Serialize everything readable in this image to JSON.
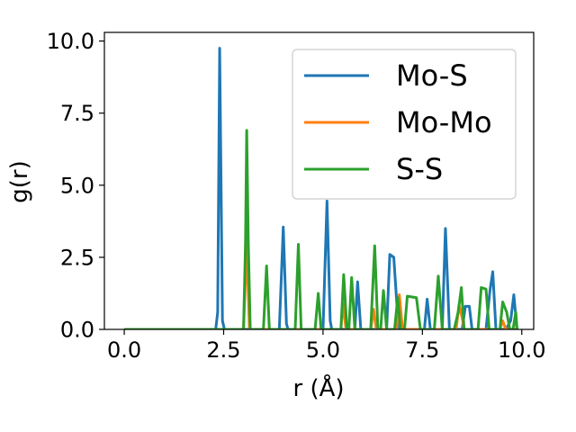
{
  "chart_data": {
    "type": "line",
    "title": "",
    "xlabel": "r (Å)",
    "ylabel": "g(r)",
    "xlim": [
      -0.5,
      10.3
    ],
    "ylim": [
      0,
      10.3
    ],
    "xticks": [
      0.0,
      2.5,
      5.0,
      7.5,
      10.0
    ],
    "yticks": [
      0.0,
      2.5,
      5.0,
      7.5,
      10.0
    ],
    "xtick_labels": [
      "0.0",
      "2.5",
      "5.0",
      "7.5",
      "10.0"
    ],
    "ytick_labels": [
      "0.0",
      "2.5",
      "5.0",
      "7.5",
      "10.0"
    ],
    "grid": false,
    "legend_position": "upper right",
    "series": [
      {
        "name": "Mo-S",
        "color": "#1f77b4",
        "points": [
          [
            0,
            0
          ],
          [
            2.3,
            0
          ],
          [
            2.35,
            0.6
          ],
          [
            2.4,
            9.75
          ],
          [
            2.47,
            0.3
          ],
          [
            2.52,
            0
          ],
          [
            3.9,
            0
          ],
          [
            4.0,
            3.55
          ],
          [
            4.08,
            0.2
          ],
          [
            4.12,
            0
          ],
          [
            5.0,
            0
          ],
          [
            5.1,
            4.45
          ],
          [
            5.18,
            0.3
          ],
          [
            5.22,
            0
          ],
          [
            5.8,
            0
          ],
          [
            5.87,
            1.65
          ],
          [
            5.95,
            0
          ],
          [
            6.6,
            0
          ],
          [
            6.68,
            2.6
          ],
          [
            6.78,
            2.5
          ],
          [
            6.9,
            0
          ],
          [
            7.55,
            0
          ],
          [
            7.62,
            1.05
          ],
          [
            7.7,
            0
          ],
          [
            8.0,
            0
          ],
          [
            8.08,
            3.5
          ],
          [
            8.18,
            0
          ],
          [
            8.5,
            0
          ],
          [
            8.58,
            0.8
          ],
          [
            8.68,
            0.8
          ],
          [
            8.75,
            0
          ],
          [
            9.1,
            0
          ],
          [
            9.2,
            1.35
          ],
          [
            9.27,
            2.0
          ],
          [
            9.35,
            0
          ],
          [
            9.6,
            0
          ],
          [
            9.72,
            0.3
          ],
          [
            9.8,
            1.2
          ],
          [
            9.88,
            0
          ]
        ]
      },
      {
        "name": "Mo-Mo",
        "color": "#ff7f0e",
        "points": [
          [
            0,
            0
          ],
          [
            3.0,
            0
          ],
          [
            3.08,
            2.95
          ],
          [
            3.15,
            0
          ],
          [
            5.45,
            0
          ],
          [
            5.5,
            0.9
          ],
          [
            5.58,
            0
          ],
          [
            6.2,
            0
          ],
          [
            6.27,
            0.7
          ],
          [
            6.34,
            0
          ],
          [
            6.85,
            0
          ],
          [
            6.92,
            1.2
          ],
          [
            7.0,
            0
          ],
          [
            8.35,
            0
          ],
          [
            8.42,
            0.85
          ],
          [
            8.5,
            0.4
          ],
          [
            8.55,
            0
          ],
          [
            9.45,
            0
          ],
          [
            9.52,
            0.3
          ],
          [
            9.6,
            0
          ],
          [
            9.85,
            0
          ]
        ]
      },
      {
        "name": "S-S",
        "color": "#2ca02c",
        "points": [
          [
            0,
            0
          ],
          [
            3.0,
            0
          ],
          [
            3.05,
            3.0
          ],
          [
            3.08,
            6.9
          ],
          [
            3.12,
            3.0
          ],
          [
            3.17,
            0
          ],
          [
            3.5,
            0
          ],
          [
            3.58,
            2.2
          ],
          [
            3.65,
            0
          ],
          [
            4.3,
            0
          ],
          [
            4.38,
            2.95
          ],
          [
            4.45,
            0
          ],
          [
            4.8,
            0
          ],
          [
            4.88,
            1.25
          ],
          [
            4.95,
            0
          ],
          [
            5.45,
            0
          ],
          [
            5.52,
            1.9
          ],
          [
            5.6,
            0
          ],
          [
            5.65,
            0
          ],
          [
            5.72,
            1.8
          ],
          [
            5.8,
            0
          ],
          [
            6.2,
            0
          ],
          [
            6.3,
            2.9
          ],
          [
            6.38,
            0
          ],
          [
            6.45,
            0
          ],
          [
            6.52,
            1.35
          ],
          [
            6.6,
            0
          ],
          [
            6.8,
            0
          ],
          [
            6.88,
            1.1
          ],
          [
            6.95,
            0
          ],
          [
            7.05,
            0
          ],
          [
            7.12,
            1.15
          ],
          [
            7.35,
            1.1
          ],
          [
            7.45,
            0
          ],
          [
            7.8,
            0
          ],
          [
            7.9,
            1.85
          ],
          [
            8.0,
            0
          ],
          [
            8.3,
            0
          ],
          [
            8.4,
            0.6
          ],
          [
            8.48,
            1.45
          ],
          [
            8.55,
            0
          ],
          [
            8.9,
            0
          ],
          [
            8.98,
            1.45
          ],
          [
            9.1,
            1.4
          ],
          [
            9.18,
            0
          ],
          [
            9.45,
            0
          ],
          [
            9.52,
            0.95
          ],
          [
            9.62,
            0.6
          ],
          [
            9.7,
            0
          ],
          [
            9.78,
            0
          ],
          [
            9.85,
            0.6
          ],
          [
            9.88,
            0
          ]
        ]
      }
    ]
  }
}
